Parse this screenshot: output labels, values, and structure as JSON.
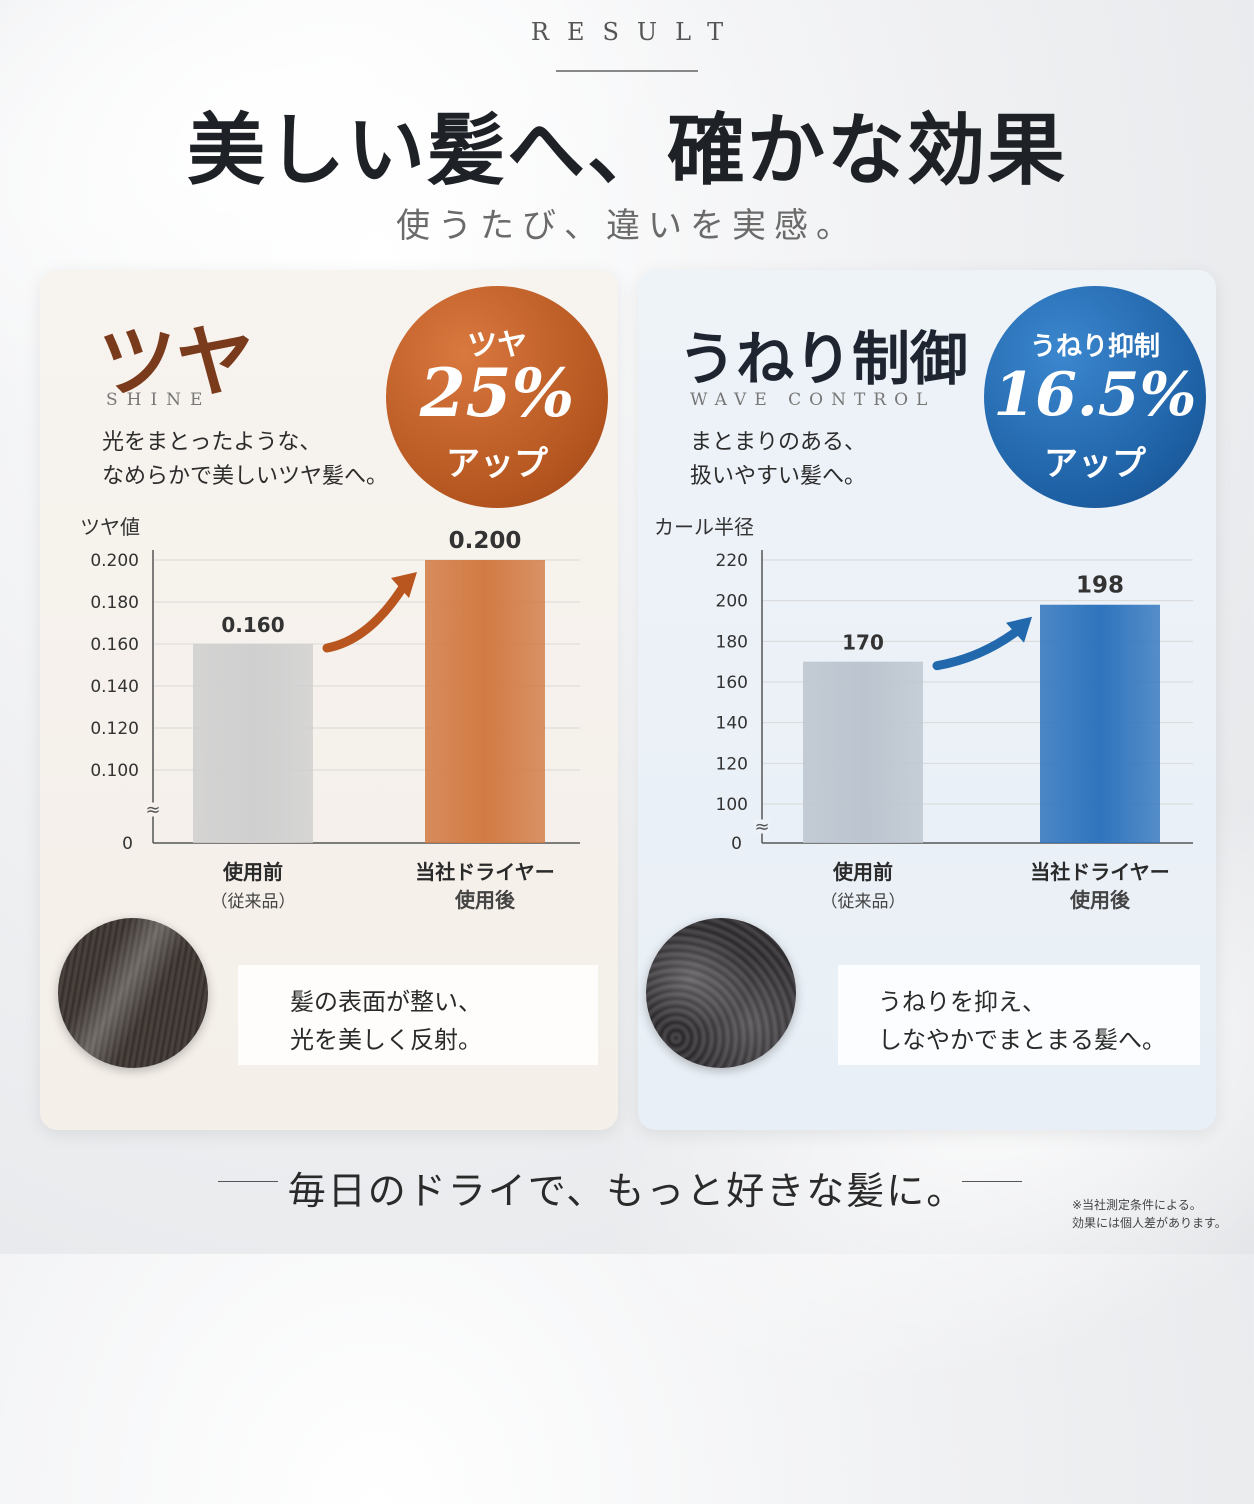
{
  "header": {
    "eyebrow": "RESULT",
    "title": "美しい髪へ、確かな効果",
    "subtitle": "使うたび、違いを実感。"
  },
  "panels": [
    {
      "title": "ツヤ",
      "title_en": "SHINE",
      "desc_line1": "光をまとったような、",
      "desc_line2": "なめらかで美しいツヤ髪へ。",
      "badge_top": "ツヤ",
      "badge_value": "25%",
      "badge_bottom": "アップ",
      "note_line1": "髪の表面が整い、",
      "note_line2": "光を美しく反射。"
    },
    {
      "title": "うねり制御",
      "title_en": "WAVE CONTROL",
      "desc_line1": "まとまりのある、",
      "desc_line2": "扱いやすい髪へ。",
      "badge_top": "うねり抑制",
      "badge_value": "16.5%",
      "badge_bottom": "アップ",
      "note_line1": "うねりを抑え、",
      "note_line2": "しなやかでまとまる髪へ。"
    }
  ],
  "chart_data": [
    {
      "type": "bar",
      "ylabel": "ツヤ値",
      "categories": [
        [
          "使用前",
          "（従来品）"
        ],
        [
          "当社ドライヤー",
          "使用後"
        ]
      ],
      "values": [
        0.16,
        0.2
      ],
      "value_labels": [
        "0.160",
        "0.200"
      ],
      "yticks": [
        "0.200",
        "0.180",
        "0.160",
        "0.140",
        "0.120",
        "0.100"
      ],
      "ytick_values": [
        0.2,
        0.18,
        0.16,
        0.14,
        0.12,
        0.1
      ],
      "ylim": [
        0.1,
        0.2
      ],
      "axis_break": true,
      "zero_label": "0",
      "bar_colors": [
        "#cfcfcf",
        "#d27a43"
      ],
      "arrow_color": "#b9551e"
    },
    {
      "type": "bar",
      "ylabel": "カール半径",
      "categories": [
        [
          "使用前",
          "（従来品）"
        ],
        [
          "当社ドライヤー",
          "使用後"
        ]
      ],
      "values": [
        170,
        198
      ],
      "value_labels": [
        "170",
        "198"
      ],
      "yticks": [
        "220",
        "200",
        "180",
        "160",
        "140",
        "120",
        "100"
      ],
      "ytick_values": [
        220,
        200,
        180,
        160,
        140,
        120,
        100
      ],
      "ylim": [
        100,
        220
      ],
      "axis_break": true,
      "zero_label": "0",
      "bar_colors": [
        "#bcc5cf",
        "#2f74bd"
      ],
      "arrow_color": "#2168ad"
    }
  ],
  "footer": {
    "tagline": "毎日のドライで、もっと好きな髪に。",
    "disclaimer_line1": "※当社測定条件による。",
    "disclaimer_line2": "効果には個人差があります。"
  }
}
